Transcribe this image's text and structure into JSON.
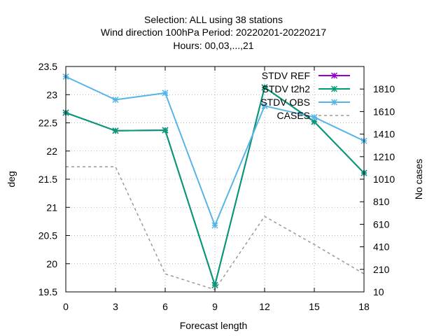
{
  "chart_data": {
    "type": "line",
    "title_lines": [
      "Selection: ALL using    38 stations",
      "Wind direction 100hPa   Period: 20220201-20220217",
      "Hours:  00,03,...,21"
    ],
    "xlabel": "Forecast length",
    "ylabel": "deg",
    "y2label": "No cases",
    "x": [
      0,
      3,
      6,
      9,
      12,
      15,
      18
    ],
    "xlim": [
      0,
      18
    ],
    "x_ticks": [
      "0",
      "3",
      "6",
      "9",
      "12",
      "15",
      "18"
    ],
    "ylim": [
      19.5,
      23.5
    ],
    "y_ticks": [
      "19.5",
      "20",
      "20.5",
      "21",
      "21.5",
      "22",
      "22.5",
      "23",
      "23.5"
    ],
    "y2lim": [
      10,
      2010
    ],
    "y2_ticks": [
      "10",
      "210",
      "410",
      "610",
      "810",
      "1010",
      "1210",
      "1410",
      "1610",
      "1810"
    ],
    "grid": true,
    "legend_position": "top-right",
    "series": [
      {
        "name": "STDV REF",
        "axis": "y",
        "color": "#9400d3",
        "marker": "x",
        "dashed": false,
        "values": [
          22.68,
          22.36,
          22.37,
          19.62,
          23.13,
          22.52,
          21.61
        ]
      },
      {
        "name": "STDV t2h2",
        "axis": "y",
        "color": "#009e73",
        "marker": "x",
        "dashed": false,
        "values": [
          22.68,
          22.36,
          22.37,
          19.62,
          23.13,
          22.52,
          21.61
        ]
      },
      {
        "name": "STDV OBS",
        "axis": "y",
        "color": "#56b4e9",
        "marker": "x",
        "dashed": false,
        "values": [
          23.32,
          22.91,
          23.03,
          20.68,
          22.8,
          22.6,
          22.18
        ]
      },
      {
        "name": "CASES",
        "axis": "y2",
        "color": "#999999",
        "marker": "",
        "dashed": true,
        "values": [
          1120,
          1120,
          170,
          30,
          680,
          430,
          170
        ]
      }
    ]
  }
}
